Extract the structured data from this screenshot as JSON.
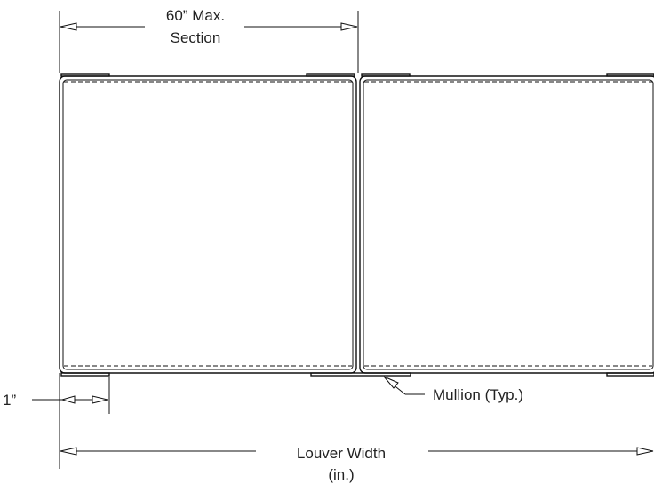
{
  "labels": {
    "section_max_line1": "60” Max.",
    "section_max_line2": "Section",
    "mullion": "Mullion (Typ.)",
    "offset": "1”",
    "louver_width_line1": "Louver Width",
    "louver_width_line2": "(in.)"
  }
}
